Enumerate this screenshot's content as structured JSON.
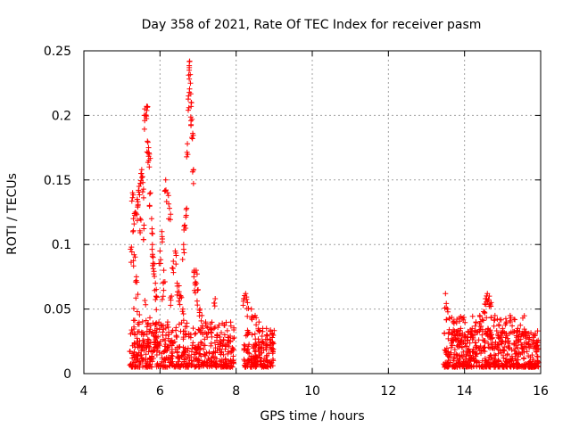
{
  "chart_data": {
    "type": "scatter",
    "title": "Day 358 of 2021, Rate Of TEC Index for receiver pasm",
    "xlabel": "GPS time / hours",
    "ylabel": "ROTI / TECUs",
    "xlim": [
      4,
      16
    ],
    "ylim": [
      0,
      0.25
    ],
    "grid": true,
    "marker": "+",
    "marker_color": "#ff0000",
    "x_ticks": [
      {
        "value": 4,
        "label": "4"
      },
      {
        "value": 6,
        "label": "6"
      },
      {
        "value": 8,
        "label": "8"
      },
      {
        "value": 10,
        "label": "10"
      },
      {
        "value": 12,
        "label": "12"
      },
      {
        "value": 14,
        "label": "14"
      },
      {
        "value": 16,
        "label": "16"
      }
    ],
    "y_ticks": [
      {
        "value": 0,
        "label": "0"
      },
      {
        "value": 0.05,
        "label": "0.05"
      },
      {
        "value": 0.1,
        "label": "0.1"
      },
      {
        "value": 0.15,
        "label": "0.15"
      },
      {
        "value": 0.2,
        "label": "0.2"
      },
      {
        "value": 0.25,
        "label": "0.25"
      }
    ],
    "series": [
      {
        "name": "ROTI",
        "points": [
          [
            5.25,
            0.098
          ],
          [
            5.28,
            0.14
          ],
          [
            5.3,
            0.12
          ],
          [
            5.32,
            0.092
          ],
          [
            5.35,
            0.125
          ],
          [
            5.38,
            0.075
          ],
          [
            5.4,
            0.135
          ],
          [
            5.42,
            0.13
          ],
          [
            5.45,
            0.145
          ],
          [
            5.48,
            0.12
          ],
          [
            5.5,
            0.155
          ],
          [
            5.52,
            0.158
          ],
          [
            5.55,
            0.148
          ],
          [
            5.58,
            0.115
          ],
          [
            5.6,
            0.205
          ],
          [
            5.62,
            0.2
          ],
          [
            5.65,
            0.207
          ],
          [
            5.67,
            0.18
          ],
          [
            5.7,
            0.175
          ],
          [
            5.72,
            0.17
          ],
          [
            5.75,
            0.14
          ],
          [
            5.78,
            0.12
          ],
          [
            5.8,
            0.1
          ],
          [
            5.82,
            0.09
          ],
          [
            5.85,
            0.085
          ],
          [
            5.88,
            0.07
          ],
          [
            5.9,
            0.06
          ],
          [
            5.92,
            0.035
          ],
          [
            6.0,
            0.095
          ],
          [
            6.05,
            0.11
          ],
          [
            6.1,
            0.08
          ],
          [
            6.15,
            0.15
          ],
          [
            6.2,
            0.14
          ],
          [
            6.25,
            0.128
          ],
          [
            6.3,
            0.06
          ],
          [
            6.35,
            0.087
          ],
          [
            6.4,
            0.095
          ],
          [
            6.45,
            0.07
          ],
          [
            6.5,
            0.068
          ],
          [
            6.55,
            0.06
          ],
          [
            6.6,
            0.05
          ],
          [
            6.62,
            0.1
          ],
          [
            6.65,
            0.115
          ],
          [
            6.7,
            0.128
          ],
          [
            6.72,
            0.178
          ],
          [
            6.75,
            0.215
          ],
          [
            6.77,
            0.237
          ],
          [
            6.78,
            0.242
          ],
          [
            6.8,
            0.225
          ],
          [
            6.82,
            0.21
          ],
          [
            6.84,
            0.197
          ],
          [
            6.86,
            0.186
          ],
          [
            6.88,
            0.158
          ],
          [
            6.9,
            0.08
          ],
          [
            6.92,
            0.07
          ],
          [
            6.95,
            0.08
          ],
          [
            7.0,
            0.065
          ],
          [
            7.05,
            0.05
          ],
          [
            7.1,
            0.045
          ],
          [
            7.2,
            0.04
          ],
          [
            7.35,
            0.035
          ],
          [
            7.45,
            0.058
          ],
          [
            7.5,
            0.03
          ],
          [
            7.6,
            0.025
          ],
          [
            7.7,
            0.03
          ],
          [
            7.8,
            0.028
          ],
          [
            7.9,
            0.02
          ],
          [
            8.2,
            0.058
          ],
          [
            8.25,
            0.062
          ],
          [
            8.3,
            0.055
          ],
          [
            8.4,
            0.05
          ],
          [
            8.5,
            0.045
          ],
          [
            8.6,
            0.04
          ],
          [
            8.7,
            0.035
          ],
          [
            8.8,
            0.03
          ],
          [
            8.95,
            0.028
          ],
          [
            13.5,
            0.062
          ],
          [
            13.55,
            0.05
          ],
          [
            13.6,
            0.043
          ],
          [
            13.7,
            0.04
          ],
          [
            13.8,
            0.042
          ],
          [
            13.9,
            0.035
          ],
          [
            14.0,
            0.03
          ],
          [
            14.1,
            0.032
          ],
          [
            14.2,
            0.035
          ],
          [
            14.3,
            0.04
          ],
          [
            14.4,
            0.045
          ],
          [
            14.5,
            0.048
          ],
          [
            14.55,
            0.058
          ],
          [
            14.6,
            0.062
          ],
          [
            14.65,
            0.06
          ],
          [
            14.7,
            0.055
          ],
          [
            14.8,
            0.045
          ],
          [
            14.9,
            0.038
          ],
          [
            15.0,
            0.035
          ],
          [
            15.1,
            0.04
          ],
          [
            15.2,
            0.045
          ],
          [
            15.3,
            0.042
          ],
          [
            15.4,
            0.035
          ],
          [
            15.5,
            0.03
          ],
          [
            15.6,
            0.032
          ],
          [
            15.7,
            0.028
          ],
          [
            15.8,
            0.03
          ],
          [
            15.9,
            0.025
          ]
        ],
        "dense_bands": [
          {
            "x_range": [
              5.2,
              7.95
            ],
            "y_range": [
              0.005,
              0.04
            ],
            "count": 520
          },
          {
            "x_range": [
              5.3,
              6.1
            ],
            "y_range": [
              0.02,
              0.065
            ],
            "count": 60
          },
          {
            "x_range": [
              8.2,
              9.0
            ],
            "y_range": [
              0.005,
              0.035
            ],
            "count": 170
          },
          {
            "x_range": [
              13.45,
              15.95
            ],
            "y_range": [
              0.005,
              0.035
            ],
            "count": 520
          },
          {
            "x_range": [
              13.6,
              15.9
            ],
            "y_range": [
              0.02,
              0.045
            ],
            "count": 70
          }
        ]
      }
    ]
  }
}
